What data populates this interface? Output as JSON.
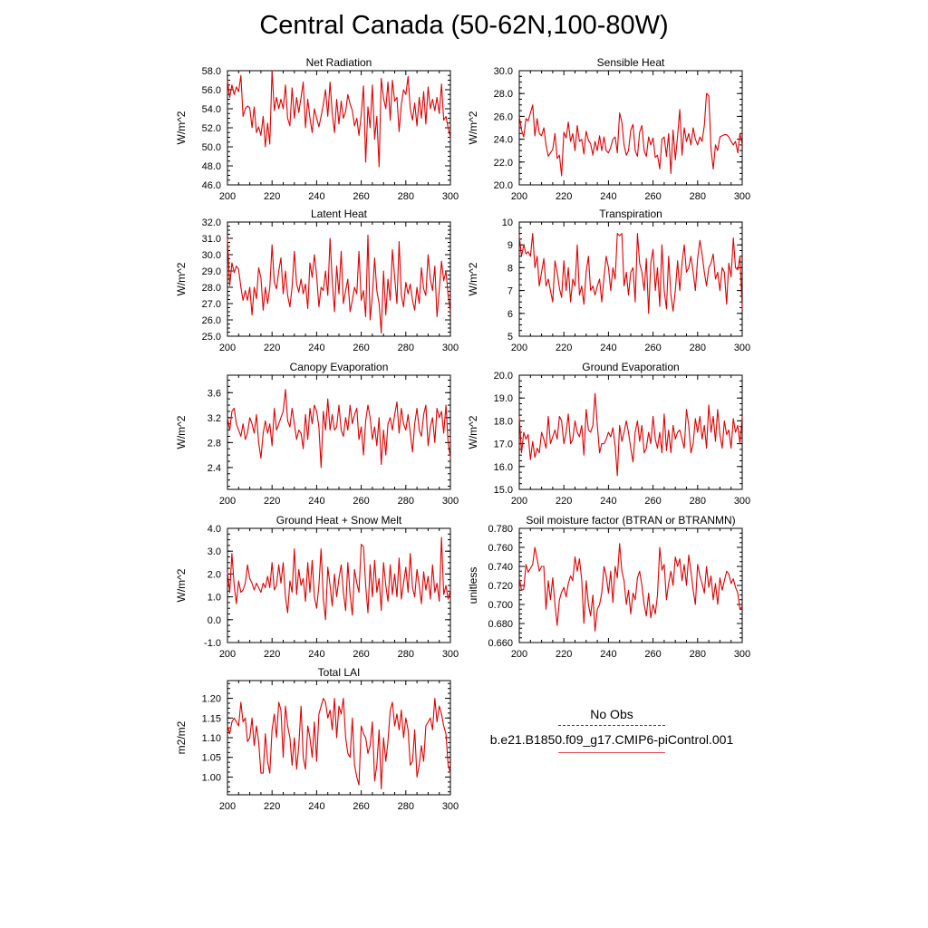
{
  "title": "Central Canada (50-62N,100-80W)",
  "legend": {
    "obs_label": "No Obs",
    "case_label": "b.e21.B1850.f09_g17.CMIP6-piControl.001",
    "obs_color": "#3a3aa0",
    "case_color": "#e00000"
  },
  "chart_data": [
    {
      "type": "line",
      "title": "Net Radiation",
      "ylabel": "W/m^2",
      "xlim": [
        200,
        300
      ],
      "ylim": [
        46,
        58
      ],
      "xticks": [
        200,
        220,
        240,
        260,
        280,
        300
      ],
      "yticks": [
        46,
        48,
        50,
        52,
        54,
        56,
        58
      ],
      "ytick_labels": [
        "46.0",
        "48.0",
        "50.0",
        "52.0",
        "54.0",
        "56.0",
        "58.0"
      ],
      "x_start": 200,
      "values": [
        57.0,
        55.2,
        56.5,
        55.5,
        56.3,
        55.8,
        57.5,
        53.2,
        54.0,
        54.3,
        54.1,
        52.0,
        54.2,
        51.5,
        52.1,
        51.2,
        53.2,
        50.0,
        52.5,
        50.3,
        58.0,
        53.8,
        55.2,
        54.0,
        55.0,
        54.0,
        56.5,
        53.0,
        52.2,
        56.2,
        53.0,
        55.2,
        53.6,
        55.2,
        56.8,
        52.0,
        55.0,
        53.0,
        51.5,
        54.0,
        53.0,
        52.1,
        53.2,
        54.5,
        56.0,
        53.2,
        56.8,
        53.5,
        51.5,
        55.0,
        52.4,
        54.8,
        53.0,
        53.7,
        55.5,
        54.5,
        53.8,
        52.2,
        53.0,
        51.2,
        53.4,
        56.4,
        48.4,
        54.2,
        52.0,
        56.5,
        50.8,
        53.2,
        47.9,
        57.2,
        55.1,
        54.0,
        56.8,
        52.8,
        57.0,
        54.8,
        55.2,
        51.6,
        54.5,
        56.0,
        55.5,
        57.4,
        54.0,
        52.8,
        54.6,
        52.2,
        55.2,
        53.0,
        55.8,
        52.4,
        56.3,
        54.0,
        55.0,
        53.8,
        55.2,
        53.5,
        56.6,
        52.8,
        53.2,
        52.0,
        51.0
      ]
    },
    {
      "type": "line",
      "title": "Sensible Heat",
      "ylabel": "W/m^2",
      "xlim": [
        200,
        300
      ],
      "ylim": [
        20,
        30
      ],
      "xticks": [
        200,
        220,
        240,
        260,
        280,
        300
      ],
      "yticks": [
        20,
        22,
        24,
        26,
        28,
        30
      ],
      "ytick_labels": [
        "20.0",
        "22.0",
        "24.0",
        "26.0",
        "28.0",
        "30.0"
      ],
      "x_start": 200,
      "values": [
        26.0,
        24.8,
        24.2,
        25.8,
        25.6,
        26.3,
        27.0,
        24.3,
        25.8,
        24.5,
        24.3,
        25.0,
        23.5,
        22.5,
        22.8,
        23.1,
        24.5,
        22.3,
        22.6,
        20.8,
        24.6,
        24.1,
        25.5,
        23.8,
        24.5,
        23.0,
        25.2,
        23.8,
        24.0,
        22.7,
        24.7,
        23.9,
        23.6,
        22.6,
        23.8,
        23.0,
        24.3,
        23.0,
        24.2,
        23.0,
        22.8,
        23.3,
        24.0,
        24.2,
        22.8,
        26.3,
        25.5,
        23.5,
        22.6,
        23.0,
        24.8,
        25.3,
        23.0,
        22.5,
        24.6,
        25.2,
        23.0,
        22.5,
        24.2,
        23.5,
        24.1,
        22.4,
        22.6,
        21.4,
        24.0,
        24.2,
        22.5,
        24.5,
        21.0,
        24.8,
        22.2,
        24.3,
        26.6,
        22.6,
        25.0,
        23.8,
        24.5,
        23.5,
        25.0,
        24.0,
        23.5,
        24.2,
        23.8,
        25.2,
        28.0,
        27.8,
        23.1,
        21.4,
        23.5,
        23.0,
        24.2,
        24.3,
        24.4,
        24.4,
        24.2,
        23.8,
        23.5,
        23.8,
        22.8,
        24.5,
        23.5
      ]
    },
    {
      "type": "line",
      "title": "Latent Heat",
      "ylabel": "W/m^2",
      "xlim": [
        200,
        300
      ],
      "ylim": [
        25,
        32
      ],
      "xticks": [
        200,
        220,
        240,
        260,
        280,
        300
      ],
      "yticks": [
        25,
        26,
        27,
        28,
        29,
        30,
        31,
        32
      ],
      "ytick_labels": [
        "25.0",
        "26.0",
        "27.0",
        "28.0",
        "29.0",
        "30.0",
        "31.0",
        "32.0"
      ],
      "x_start": 200,
      "values": [
        31.0,
        28.1,
        29.5,
        28.9,
        29.3,
        29.1,
        28.0,
        27.2,
        27.8,
        27.2,
        28.0,
        26.3,
        28.0,
        27.3,
        29.2,
        28.6,
        26.6,
        28.0,
        27.0,
        28.0,
        30.6,
        28.3,
        27.9,
        29.0,
        29.8,
        27.6,
        29.0,
        27.5,
        26.8,
        28.0,
        30.2,
        28.2,
        27.7,
        28.5,
        27.6,
        28.2,
        26.7,
        29.5,
        28.6,
        30.0,
        28.7,
        26.8,
        28.0,
        27.8,
        29.0,
        27.5,
        31.0,
        28.4,
        26.5,
        29.3,
        27.6,
        30.2,
        27.0,
        27.8,
        28.5,
        26.5,
        27.2,
        28.0,
        27.6,
        30.2,
        27.2,
        27.8,
        26.2,
        31.2,
        26.0,
        27.5,
        29.8,
        27.8,
        27.0,
        25.2,
        29.0,
        26.3,
        28.5,
        27.2,
        30.3,
        28.6,
        27.0,
        30.8,
        27.5,
        26.8,
        28.3,
        27.6,
        28.2,
        27.2,
        26.6,
        28.0,
        27.0,
        29.2,
        27.9,
        27.5,
        30.0,
        28.5,
        27.8,
        29.3,
        26.2,
        27.8,
        29.6,
        28.4,
        29.0,
        27.5,
        26.5
      ]
    },
    {
      "type": "line",
      "title": "Transpiration",
      "ylabel": "W/m^2",
      "xlim": [
        200,
        300
      ],
      "ylim": [
        5,
        10
      ],
      "xticks": [
        200,
        220,
        240,
        260,
        280,
        300
      ],
      "yticks": [
        5,
        6,
        7,
        8,
        9,
        10
      ],
      "ytick_labels": [
        "5",
        "6",
        "7",
        "8",
        "9",
        "10"
      ],
      "x_start": 200,
      "values": [
        9.4,
        8.5,
        9.0,
        8.6,
        8.7,
        8.5,
        9.5,
        8.0,
        8.5,
        7.2,
        7.8,
        8.4,
        7.2,
        7.5,
        7.0,
        6.5,
        8.3,
        7.8,
        7.1,
        6.7,
        8.3,
        7.0,
        8.0,
        6.5,
        7.5,
        7.2,
        9.0,
        6.8,
        7.2,
        6.4,
        7.8,
        8.5,
        7.0,
        7.2,
        6.8,
        7.2,
        7.5,
        6.5,
        7.6,
        8.5,
        8.0,
        7.0,
        8.0,
        7.5,
        9.5,
        9.4,
        9.5,
        7.2,
        7.8,
        6.8,
        7.8,
        8.0,
        6.5,
        9.5,
        8.2,
        7.8,
        7.0,
        8.4,
        6.0,
        8.2,
        8.8,
        7.0,
        8.0,
        6.3,
        9.0,
        7.0,
        6.2,
        8.5,
        6.8,
        6.1,
        7.0,
        8.3,
        7.0,
        8.2,
        9.0,
        7.8,
        8.0,
        8.5,
        7.8,
        7.0,
        8.4,
        9.2,
        8.6,
        7.8,
        7.2,
        8.0,
        8.2,
        8.6,
        7.5,
        7.8,
        7.0,
        8.0,
        7.8,
        6.4,
        8.2,
        7.6,
        9.3,
        8.0,
        7.9,
        8.5,
        6.2
      ]
    },
    {
      "type": "line",
      "title": "Canopy Evaporation",
      "ylabel": "W/m^2",
      "xlim": [
        200,
        300
      ],
      "ylim": [
        2.05,
        3.88
      ],
      "xticks": [
        200,
        220,
        240,
        260,
        280,
        300
      ],
      "yticks": [
        2.4,
        2.8,
        3.2,
        3.6
      ],
      "ytick_labels": [
        "2.4",
        "2.8",
        "3.2",
        "3.6"
      ],
      "x_start": 200,
      "values": [
        3.2,
        3.0,
        3.3,
        3.35,
        3.1,
        3.0,
        2.9,
        3.1,
        2.85,
        2.95,
        3.2,
        3.1,
        2.95,
        3.25,
        2.8,
        2.55,
        2.95,
        3.15,
        2.95,
        3.1,
        2.75,
        3.35,
        3.0,
        3.1,
        3.2,
        3.3,
        3.65,
        3.15,
        3.05,
        3.35,
        3.1,
        2.85,
        3.0,
        2.95,
        2.7,
        3.25,
        2.85,
        3.35,
        3.1,
        3.4,
        3.3,
        3.05,
        2.4,
        3.3,
        3.0,
        3.5,
        3.0,
        3.25,
        3.0,
        3.05,
        3.4,
        3.0,
        2.9,
        3.2,
        3.0,
        3.4,
        3.1,
        3.25,
        3.35,
        2.85,
        3.05,
        2.6,
        3.15,
        3.4,
        3.2,
        2.85,
        3.05,
        2.75,
        3.2,
        2.45,
        3.0,
        2.6,
        3.1,
        3.2,
        3.0,
        3.25,
        3.45,
        2.95,
        3.35,
        3.1,
        3.0,
        3.25,
        2.95,
        2.65,
        3.1,
        3.35,
        3.0,
        2.9,
        3.25,
        3.4,
        2.75,
        3.05,
        3.2,
        2.8,
        3.35,
        3.2,
        3.3,
        2.95,
        3.4,
        2.8,
        2.55
      ]
    },
    {
      "type": "line",
      "title": "Ground Evaporation",
      "ylabel": "W/m^2",
      "xlim": [
        200,
        300
      ],
      "ylim": [
        15,
        20
      ],
      "xticks": [
        200,
        220,
        240,
        260,
        280,
        300
      ],
      "yticks": [
        15,
        16,
        17,
        18,
        19,
        20
      ],
      "ytick_labels": [
        "15.0",
        "16.0",
        "17.0",
        "18.0",
        "19.0",
        "20.0"
      ],
      "x_start": 200,
      "values": [
        18.2,
        16.6,
        17.5,
        17.2,
        17.4,
        16.3,
        17.1,
        16.4,
        16.8,
        16.6,
        17.5,
        17.2,
        16.8,
        18.2,
        17.0,
        17.3,
        17.6,
        17.2,
        18.2,
        18.0,
        17.0,
        17.5,
        18.3,
        17.0,
        17.2,
        18.0,
        17.5,
        17.3,
        17.8,
        16.5,
        18.5,
        17.6,
        17.5,
        17.8,
        19.2,
        17.8,
        16.6,
        17.0,
        17.0,
        17.2,
        17.5,
        17.3,
        17.7,
        16.9,
        15.6,
        17.8,
        17.1,
        17.5,
        18.0,
        17.5,
        16.8,
        16.2,
        17.5,
        18.0,
        17.1,
        17.8,
        16.6,
        16.8,
        17.5,
        17.0,
        18.2,
        17.2,
        16.8,
        17.5,
        16.6,
        18.3,
        16.7,
        17.6,
        16.6,
        17.8,
        17.2,
        17.5,
        17.6,
        17.2,
        16.8,
        18.5,
        17.8,
        16.6,
        17.0,
        18.1,
        17.5,
        18.2,
        17.2,
        17.8,
        16.8,
        18.7,
        17.5,
        18.2,
        17.1,
        18.5,
        17.4,
        16.8,
        18.0,
        17.4,
        17.6,
        16.8,
        18.1,
        17.5,
        17.8,
        17.0,
        18.2
      ]
    },
    {
      "type": "line",
      "title": "Ground Heat + Snow Melt",
      "ylabel": "W/m^2",
      "xlim": [
        200,
        300
      ],
      "ylim": [
        -1,
        4
      ],
      "xticks": [
        200,
        220,
        240,
        260,
        280,
        300
      ],
      "yticks": [
        -1,
        0,
        1,
        2,
        3,
        4
      ],
      "ytick_labels": [
        "-1.0",
        "0.0",
        "1.0",
        "2.0",
        "3.0",
        "4.0"
      ],
      "x_start": 200,
      "values": [
        2.1,
        1.2,
        2.9,
        1.5,
        0.7,
        1.7,
        1.2,
        1.3,
        1.6,
        2.4,
        1.8,
        1.6,
        1.3,
        1.6,
        1.4,
        1.2,
        1.6,
        1.4,
        1.9,
        1.4,
        2.5,
        1.3,
        1.5,
        2.4,
        1.6,
        2.5,
        1.0,
        0.3,
        1.7,
        1.2,
        3.1,
        1.1,
        2.2,
        1.5,
        1.8,
        0.8,
        2.5,
        1.2,
        2.6,
        1.0,
        0.5,
        1.5,
        3.1,
        0.9,
        0.0,
        2.3,
        1.5,
        0.6,
        2.0,
        1.0,
        1.8,
        2.4,
        1.2,
        0.4,
        2.5,
        1.1,
        0.2,
        2.2,
        1.6,
        1.2,
        3.3,
        3.2,
        1.5,
        0.3,
        2.4,
        1.0,
        2.6,
        1.2,
        1.8,
        0.4,
        2.5,
        1.5,
        0.8,
        2.4,
        1.1,
        2.0,
        1.0,
        2.7,
        0.9,
        1.6,
        2.3,
        1.2,
        2.9,
        1.4,
        1.0,
        2.2,
        1.5,
        0.7,
        2.1,
        1.3,
        1.9,
        0.9,
        2.4,
        1.2,
        1.6,
        0.8,
        3.6,
        1.1,
        1.5,
        0.9,
        1.3
      ]
    },
    {
      "type": "line",
      "title": "Soil moisture factor (BTRAN or BTRANMN)",
      "ylabel": "unitless",
      "xlim": [
        200,
        300
      ],
      "ylim": [
        0.66,
        0.78
      ],
      "xticks": [
        200,
        220,
        240,
        260,
        280,
        300
      ],
      "yticks": [
        0.66,
        0.68,
        0.7,
        0.72,
        0.74,
        0.76,
        0.78
      ],
      "ytick_labels": [
        "0.660",
        "0.680",
        "0.700",
        "0.720",
        "0.740",
        "0.760",
        "0.780"
      ],
      "x_start": 200,
      "values": [
        0.728,
        0.715,
        0.716,
        0.742,
        0.734,
        0.738,
        0.742,
        0.76,
        0.748,
        0.735,
        0.74,
        0.74,
        0.695,
        0.725,
        0.705,
        0.728,
        0.7,
        0.678,
        0.705,
        0.713,
        0.718,
        0.708,
        0.722,
        0.73,
        0.725,
        0.75,
        0.735,
        0.748,
        0.726,
        0.68,
        0.725,
        0.7,
        0.688,
        0.71,
        0.672,
        0.695,
        0.7,
        0.712,
        0.74,
        0.73,
        0.712,
        0.735,
        0.702,
        0.74,
        0.728,
        0.764,
        0.735,
        0.725,
        0.7,
        0.715,
        0.69,
        0.712,
        0.705,
        0.728,
        0.735,
        0.72,
        0.7,
        0.688,
        0.712,
        0.686,
        0.7,
        0.69,
        0.71,
        0.76,
        0.736,
        0.742,
        0.705,
        0.722,
        0.735,
        0.72,
        0.75,
        0.74,
        0.748,
        0.725,
        0.742,
        0.72,
        0.752,
        0.735,
        0.715,
        0.7,
        0.742,
        0.73,
        0.722,
        0.712,
        0.74,
        0.718,
        0.73,
        0.705,
        0.722,
        0.7,
        0.728,
        0.715,
        0.725,
        0.735,
        0.732,
        0.722,
        0.727,
        0.718,
        0.712,
        0.695,
        0.698
      ]
    },
    {
      "type": "line",
      "title": "Total LAI",
      "ylabel": "m2/m2",
      "xlim": [
        200,
        300
      ],
      "ylim": [
        0.955,
        1.245
      ],
      "xticks": [
        200,
        220,
        240,
        260,
        280,
        300
      ],
      "yticks": [
        1.0,
        1.05,
        1.1,
        1.15,
        1.2
      ],
      "ytick_labels": [
        "1.00",
        "1.05",
        "1.10",
        "1.15",
        "1.20"
      ],
      "x_start": 200,
      "values": [
        1.13,
        1.11,
        1.14,
        1.15,
        1.14,
        1.13,
        1.19,
        1.14,
        1.15,
        1.09,
        1.1,
        1.15,
        1.08,
        1.13,
        1.09,
        1.01,
        1.01,
        1.11,
        1.04,
        1.01,
        1.12,
        1.16,
        1.1,
        1.19,
        1.17,
        1.05,
        1.18,
        1.13,
        1.1,
        1.03,
        1.1,
        1.02,
        1.08,
        1.18,
        1.05,
        1.02,
        1.13,
        1.1,
        1.05,
        1.14,
        1.04,
        1.16,
        1.18,
        1.2,
        1.19,
        1.15,
        1.17,
        1.12,
        1.2,
        1.1,
        1.18,
        1.16,
        1.2,
        1.1,
        1.06,
        1.05,
        1.15,
        1.03,
        1.0,
        0.98,
        1.13,
        1.11,
        1.1,
        1.06,
        1.08,
        1.14,
        0.99,
        1.03,
        1.12,
        0.97,
        1.1,
        1.04,
        1.09,
        1.17,
        1.19,
        1.13,
        1.16,
        1.12,
        1.17,
        1.1,
        1.15,
        1.12,
        1.03,
        1.04,
        1.12,
        1.0,
        1.03,
        1.08,
        1.04,
        1.13,
        1.14,
        1.15,
        1.12,
        1.2,
        1.14,
        1.18,
        1.16,
        1.13,
        1.11,
        1.03,
        1.01
      ]
    }
  ]
}
